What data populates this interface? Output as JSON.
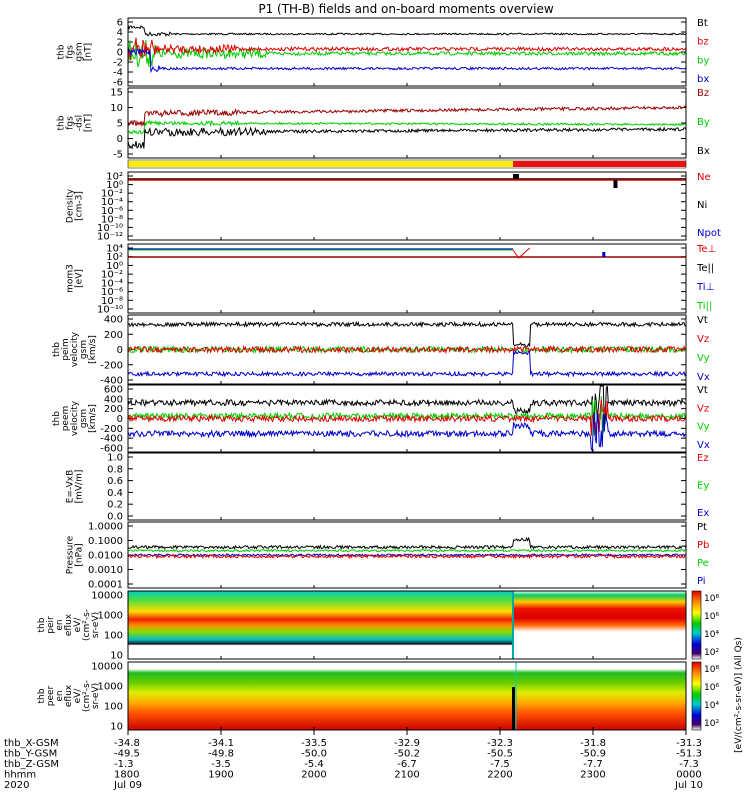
{
  "title": "P1 (TH-B) fields and on-board moments overview",
  "panels": [
    {
      "ylabel": [
        "thb",
        "fgs",
        "gsm",
        "[nT]"
      ],
      "ticks": [
        "6",
        "4",
        "2",
        "0",
        "-2",
        "-4",
        "-6"
      ],
      "legend": [
        [
          "Bt",
          "#000000"
        ],
        [
          "bz",
          "#e00000"
        ],
        [
          "by",
          "#00cc00"
        ],
        [
          "bx",
          "#0000cc"
        ]
      ]
    },
    {
      "ylabel": [
        "thb",
        "fgs",
        "-dsl",
        "[nT]"
      ],
      "ticks": [
        "15",
        "10",
        "5",
        "0",
        "-5"
      ],
      "legend": [
        [
          "Bz",
          "#990000"
        ],
        [
          "By",
          "#00cc00"
        ],
        [
          "Bx",
          "#000000"
        ]
      ]
    },
    {
      "ylabel": [
        "Density",
        "[cm-3]"
      ],
      "ticks": [
        "10²",
        "10⁰",
        "10⁻²",
        "10⁻⁴",
        "10⁻⁶",
        "10⁻⁸",
        "10⁻¹⁰",
        "10⁻¹²"
      ],
      "legend": [
        [
          "Ne",
          "#e00000"
        ],
        [
          "Ni",
          "#000000"
        ],
        [
          "Npot",
          "#0000cc"
        ]
      ]
    },
    {
      "ylabel": [
        "mom3",
        "[eV]"
      ],
      "ticks": [
        "10⁴",
        "10²",
        "10⁰",
        "10⁻²",
        "10⁻⁴",
        "10⁻⁶",
        "10⁻⁸",
        "10⁻¹⁰"
      ],
      "legend": [
        [
          "Te⊥",
          "#e00000"
        ],
        [
          "Te||",
          "#000000"
        ],
        [
          "Ti⊥",
          "#0000cc"
        ],
        [
          "Ti||",
          "#00cc00"
        ]
      ]
    },
    {
      "ylabel": [
        "thb",
        "peim",
        "velocity",
        "gsm",
        "[km/s]"
      ],
      "ticks": [
        "400",
        "200",
        "0",
        "-200",
        "-400"
      ],
      "legend": [
        [
          "Vt",
          "#000000"
        ],
        [
          "Vz",
          "#e00000"
        ],
        [
          "Vy",
          "#00cc00"
        ],
        [
          "Vx",
          "#0000cc"
        ]
      ]
    },
    {
      "ylabel": [
        "thb",
        "peem",
        "velocity",
        "gsm",
        "[km/s]"
      ],
      "ticks": [
        "600",
        "400",
        "200",
        "0",
        "-200",
        "-400",
        "-600"
      ],
      "legend": [
        [
          "Vt",
          "#000000"
        ],
        [
          "Vz",
          "#e00000"
        ],
        [
          "Vy",
          "#00cc00"
        ],
        [
          "Vx",
          "#0000cc"
        ]
      ]
    },
    {
      "ylabel": [
        "E=-VxB",
        "[mV/m]"
      ],
      "ticks": [
        "1.0",
        "0.8",
        "0.6",
        "0.4",
        "0.2",
        "0.0"
      ],
      "legend": [
        [
          "Ez",
          "#e00000"
        ],
        [
          "Ey",
          "#00cc00"
        ],
        [
          "Ex",
          "#0000cc"
        ]
      ]
    },
    {
      "ylabel": [
        "Pressure",
        "[nPa]"
      ],
      "ticks": [
        "1.0000",
        "0.1000",
        "0.0100",
        "0.0010",
        "0.0001"
      ],
      "legend": [
        [
          "Pt",
          "#000000"
        ],
        [
          "Pb",
          "#e00000"
        ],
        [
          "Pe",
          "#00cc00"
        ],
        [
          "Pi",
          "#0000cc"
        ]
      ]
    },
    {
      "ylabel": [
        "thb",
        "peir",
        "en",
        "eflux",
        "eV/",
        "(cm²-s-",
        "sr-eV)"
      ],
      "ticks": [
        "10000",
        "1000",
        "100",
        "10"
      ],
      "legend": []
    },
    {
      "ylabel": [
        "thb",
        "peer",
        "en",
        "eflux",
        "eV/",
        "(cm²-s-",
        "sr-eV)"
      ],
      "ticks": [
        "10000",
        "1000",
        "100",
        "10"
      ],
      "legend": []
    }
  ],
  "colorbars": [
    {
      "ticks": [
        "10⁸",
        "10⁶",
        "10⁴",
        "10²"
      ]
    },
    {
      "ticks": [
        "10⁸",
        "10⁶",
        "10⁴",
        "10²"
      ]
    }
  ],
  "colorbar_label": "[eV/(cm²-s-sr-eV)] (All Qs)",
  "orbit_labels": [
    "thb_X-GSM",
    "thb_Y-GSM",
    "thb_Z-GSM",
    "hhmm",
    "2020"
  ],
  "orbit_columns": [
    [
      "-34.8",
      "-49.5",
      "-1.3",
      "1800",
      "Jul 09"
    ],
    [
      "-34.1",
      "-49.8",
      "-3.5",
      "1900",
      ""
    ],
    [
      "-33.5",
      "-50.0",
      "-5.4",
      "2000",
      ""
    ],
    [
      "-32.9",
      "-50.2",
      "-6.7",
      "2100",
      ""
    ],
    [
      "-32.3",
      "-50.5",
      "-7.5",
      "2200",
      ""
    ],
    [
      "-31.8",
      "-50.9",
      "-7.7",
      "2300",
      ""
    ],
    [
      "-31.3",
      "-51.3",
      "-7.3",
      "0000",
      "Jul 10"
    ]
  ],
  "chart_data": {
    "type": "line",
    "title": "P1 (TH-B) fields and on-board moments overview",
    "x_axis": {
      "label": "hhmm",
      "ticks": [
        "1800",
        "1900",
        "2000",
        "2100",
        "2200",
        "2300",
        "0000"
      ],
      "range": [
        "2020-07-09 18:00",
        "2020-07-10 00:00"
      ]
    },
    "mode_bar": [
      {
        "start": "1800",
        "end": "2215",
        "color": "#ffee00"
      },
      {
        "start": "2215",
        "end": "0000",
        "color": "#ee1111"
      }
    ],
    "panels": [
      {
        "name": "fgs gsm",
        "ylim": [
          -6,
          6
        ],
        "series": [
          {
            "name": "Bt",
            "approx_level": 3.5
          },
          {
            "name": "bz",
            "approx_level": 0.5
          },
          {
            "name": "by",
            "approx_level": -0.2
          },
          {
            "name": "bx",
            "approx_level": -3.3
          }
        ]
      },
      {
        "name": "fgs dsl",
        "ylim": [
          -8,
          15
        ],
        "series": [
          {
            "name": "Bz",
            "approx_level": 8.5
          },
          {
            "name": "By",
            "approx_level": 5
          },
          {
            "name": "Bx",
            "approx_level": 3
          }
        ]
      },
      {
        "name": "Density",
        "scale": "log",
        "ylim": [
          "1e-12",
          "1e2"
        ],
        "series": [
          {
            "name": "Ne",
            "approx_level": "1e1"
          },
          {
            "name": "Ni",
            "approx_level": "1e1"
          }
        ]
      },
      {
        "name": "mom3",
        "scale": "log",
        "ylim": [
          "1e-10",
          "1e4"
        ],
        "series": [
          {
            "name": "Te⊥",
            "approx_level": "1e1"
          },
          {
            "name": "Ti||",
            "approx_level": "3e2"
          },
          {
            "name": "Ti⊥",
            "approx_level": "3e2"
          }
        ]
      },
      {
        "name": "peim velocity",
        "ylim": [
          -400,
          400
        ],
        "series": [
          {
            "name": "Vt",
            "approx_level": 330
          },
          {
            "name": "Vz",
            "approx_level": 0
          },
          {
            "name": "Vy",
            "approx_level": 0
          },
          {
            "name": "Vx",
            "approx_level": -320
          }
        ]
      },
      {
        "name": "peem velocity",
        "ylim": [
          -600,
          600
        ],
        "series": [
          {
            "name": "Vt",
            "approx_level": 320
          },
          {
            "name": "Vz",
            "approx_level": 0
          },
          {
            "name": "Vy",
            "approx_level": 50
          },
          {
            "name": "Vx",
            "approx_level": -310
          }
        ]
      },
      {
        "name": "E=-VxB",
        "ylim": [
          0,
          1
        ],
        "series": []
      },
      {
        "name": "Pressure",
        "scale": "log",
        "ylim": [
          "1e-4",
          "1"
        ],
        "series": [
          {
            "name": "Pt",
            "approx_level": 0.04
          },
          {
            "name": "Pe",
            "approx_level": 0.02
          },
          {
            "name": "Pb",
            "approx_level": 0.008
          },
          {
            "name": "Pi",
            "approx_level": 0.01
          }
        ]
      },
      {
        "name": "peir en eflux",
        "type": "heatmap",
        "scale": "log",
        "ylim": [
          5,
          20000
        ]
      },
      {
        "name": "peer en eflux",
        "type": "heatmap",
        "scale": "log",
        "ylim": [
          5,
          20000
        ]
      }
    ]
  }
}
